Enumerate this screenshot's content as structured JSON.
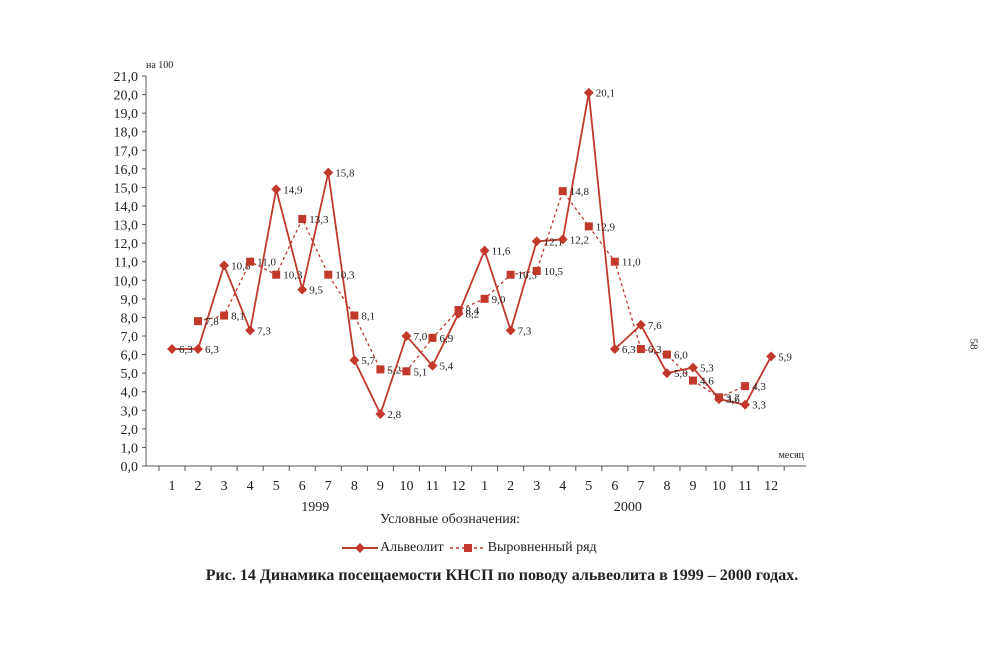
{
  "page_number": "58",
  "legend_title": "Условные обозначения:",
  "caption": "Рис. 14   Динамика посещаемости КНСП по поводу альвеолита в 1999 – 2000 годах.",
  "colors": {
    "line": "#c0392b",
    "axis": "#555555"
  },
  "chart_data": {
    "type": "line",
    "ylabel": "на 100",
    "xlabel": "месяц",
    "ylim": [
      0,
      21
    ],
    "y_step": 1,
    "y_ticks": [
      "0,0",
      "1,0",
      "2,0",
      "3,0",
      "4,0",
      "5,0",
      "6,0",
      "7,0",
      "8,0",
      "9,0",
      "10,0",
      "11,0",
      "12,0",
      "13,0",
      "14,0",
      "15,0",
      "16,0",
      "17,0",
      "18,0",
      "19,0",
      "20,0",
      "21,0"
    ],
    "categories": [
      "1",
      "2",
      "3",
      "4",
      "5",
      "6",
      "7",
      "8",
      "9",
      "10",
      "11",
      "12",
      "1",
      "2",
      "3",
      "4",
      "5",
      "6",
      "7",
      "8",
      "9",
      "10",
      "11",
      "12"
    ],
    "year_groups": [
      {
        "label": "1999",
        "from": 0,
        "to": 11
      },
      {
        "label": "2000",
        "from": 12,
        "to": 23
      }
    ],
    "series": [
      {
        "name": "Альвеолит",
        "style": "solid-diamond",
        "values": [
          6.3,
          6.3,
          10.8,
          7.3,
          14.9,
          9.5,
          15.8,
          5.7,
          2.8,
          7.0,
          5.4,
          8.2,
          11.6,
          7.3,
          12.1,
          12.2,
          20.1,
          6.3,
          7.6,
          5.0,
          5.3,
          3.6,
          3.3,
          5.9
        ],
        "labels": [
          "6,3",
          "6,3",
          "10,8",
          "7,3",
          "14,9",
          "9,5",
          "15,8",
          "5,7",
          "2,8",
          "7,0",
          "5,4",
          "8,2",
          "11,6",
          "7,3",
          "12,1",
          "12,2",
          "20,1",
          "6,3",
          "7,6",
          "5,0",
          "5,3",
          "3,6",
          "3,3",
          "5,9"
        ]
      },
      {
        "name": "Выровненный ряд",
        "style": "dashed-square",
        "values": [
          null,
          7.8,
          8.1,
          11.0,
          10.3,
          13.3,
          10.3,
          8.1,
          5.2,
          5.1,
          6.9,
          8.4,
          9.0,
          10.3,
          10.5,
          14.8,
          12.9,
          11.0,
          6.3,
          6.0,
          4.6,
          3.7,
          4.3,
          null
        ],
        "labels": [
          null,
          "7,8",
          "8,1",
          "11,0",
          "10,3",
          "13,3",
          "10,3",
          "8,1",
          "5,2",
          "5,1",
          "6,9",
          "8,4",
          "9,0",
          "10,3",
          "10,5",
          "14,8",
          "12,9",
          "11,0",
          "6,3",
          "6,0",
          "4,6",
          "3,7",
          "4,3",
          null
        ]
      }
    ]
  }
}
